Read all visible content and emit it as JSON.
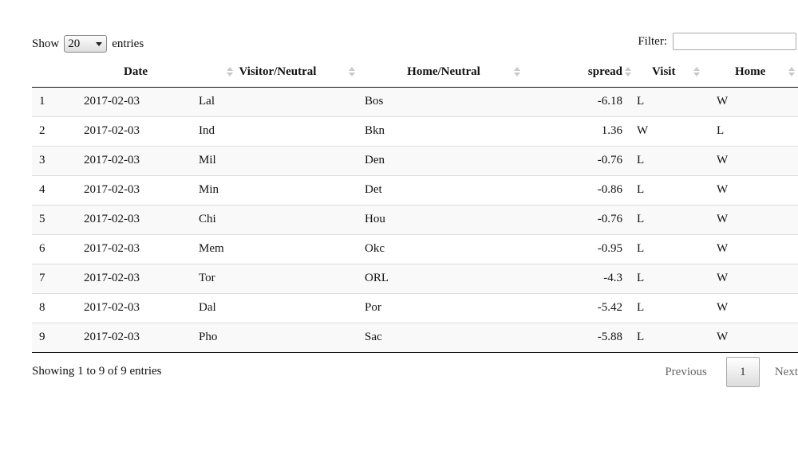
{
  "length_control": {
    "show_label": "Show",
    "selected_value": "20",
    "entries_label": "entries"
  },
  "filter": {
    "label": "Filter:",
    "value": ""
  },
  "table": {
    "columns": [
      "",
      "Date",
      "Visitor/Neutral",
      "Home/Neutral",
      "spread",
      "Visit",
      "Home"
    ],
    "rows": [
      [
        "1",
        "2017-02-03",
        "Lal",
        "Bos",
        "-6.18",
        "L",
        "W"
      ],
      [
        "2",
        "2017-02-03",
        "Ind",
        "Bkn",
        "1.36",
        "W",
        "L"
      ],
      [
        "3",
        "2017-02-03",
        "Mil",
        "Den",
        "-0.76",
        "L",
        "W"
      ],
      [
        "4",
        "2017-02-03",
        "Min",
        "Det",
        "-0.86",
        "L",
        "W"
      ],
      [
        "5",
        "2017-02-03",
        "Chi",
        "Hou",
        "-0.76",
        "L",
        "W"
      ],
      [
        "6",
        "2017-02-03",
        "Mem",
        "Okc",
        "-0.95",
        "L",
        "W"
      ],
      [
        "7",
        "2017-02-03",
        "Tor",
        "ORL",
        "-4.3",
        "L",
        "W"
      ],
      [
        "8",
        "2017-02-03",
        "Dal",
        "Por",
        "-5.42",
        "L",
        "W"
      ],
      [
        "9",
        "2017-02-03",
        "Pho",
        "Sac",
        "-5.88",
        "L",
        "W"
      ]
    ]
  },
  "info": {
    "text": "Showing 1 to 9 of 9 entries"
  },
  "pagination": {
    "previous_label": "Previous",
    "current_page": "1",
    "next_label": "Next"
  },
  "icons": {
    "sort": "sort-both-icon",
    "dropdown": "chevron-down-icon"
  }
}
